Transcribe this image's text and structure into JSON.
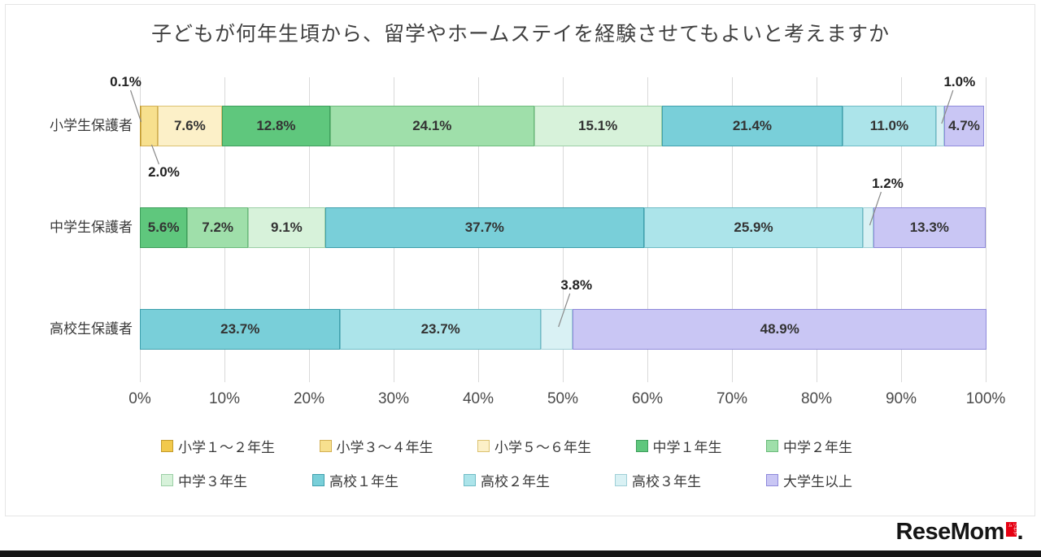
{
  "chart_data": {
    "type": "bar",
    "stacked": true,
    "orientation": "horizontal",
    "title": "子どもが何年生頃から、留学やホームステイを経験させてもよいと考えますか",
    "categories": [
      "小学生保護者",
      "中学生保護者",
      "高校生保護者"
    ],
    "x_ticks": [
      "0%",
      "10%",
      "20%",
      "30%",
      "40%",
      "50%",
      "60%",
      "70%",
      "80%",
      "90%",
      "100%"
    ],
    "xlim": [
      0,
      100
    ],
    "grid": true,
    "legend_position": "bottom",
    "series": [
      {
        "name": "小学１～２年生",
        "color": "#F2C94C",
        "border": "#C39B2D",
        "values": [
          0.1,
          0,
          0
        ]
      },
      {
        "name": "小学３～４年生",
        "color": "#F7E08E",
        "border": "#D3B055",
        "values": [
          2.0,
          0,
          0
        ]
      },
      {
        "name": "小学５～６年生",
        "color": "#FCF0C8",
        "border": "#DCC270",
        "values": [
          7.6,
          0,
          0
        ]
      },
      {
        "name": "中学１年生",
        "color": "#5FC77D",
        "border": "#3E9E5C",
        "values": [
          12.8,
          5.6,
          0
        ]
      },
      {
        "name": "中学２年生",
        "color": "#9FDFAA",
        "border": "#6CBB7C",
        "values": [
          24.1,
          7.2,
          0
        ]
      },
      {
        "name": "中学３年生",
        "color": "#D7F2DA",
        "border": "#9CCFA6",
        "values": [
          15.1,
          9.1,
          0
        ]
      },
      {
        "name": "高校１年生",
        "color": "#79CFD9",
        "border": "#3FA0AD",
        "values": [
          21.4,
          37.7,
          23.7
        ]
      },
      {
        "name": "高校２年生",
        "color": "#ACE4EA",
        "border": "#6FBCC6",
        "values": [
          11.0,
          25.9,
          23.7
        ]
      },
      {
        "name": "高校３年生",
        "color": "#D9F1F4",
        "border": "#9FCFD7",
        "values": [
          1.0,
          1.2,
          3.8
        ]
      },
      {
        "name": "大学生以上",
        "color": "#C9C6F4",
        "border": "#8F8ADB",
        "values": [
          4.7,
          13.3,
          48.9
        ]
      }
    ],
    "annotations": [
      {
        "row": 0,
        "series_index": 0,
        "label": "0.1%",
        "placement": "above-left"
      },
      {
        "row": 0,
        "series_index": 1,
        "label": "2.0%",
        "placement": "below"
      },
      {
        "row": 0,
        "series_index": 8,
        "label": "1.0%",
        "placement": "above"
      },
      {
        "row": 1,
        "series_index": 8,
        "label": "1.2%",
        "placement": "above"
      },
      {
        "row": 2,
        "series_index": 8,
        "label": "3.8%",
        "placement": "above"
      }
    ]
  },
  "logo": {
    "text": "ReseMom",
    "tag": "リセマム",
    "period": "."
  }
}
